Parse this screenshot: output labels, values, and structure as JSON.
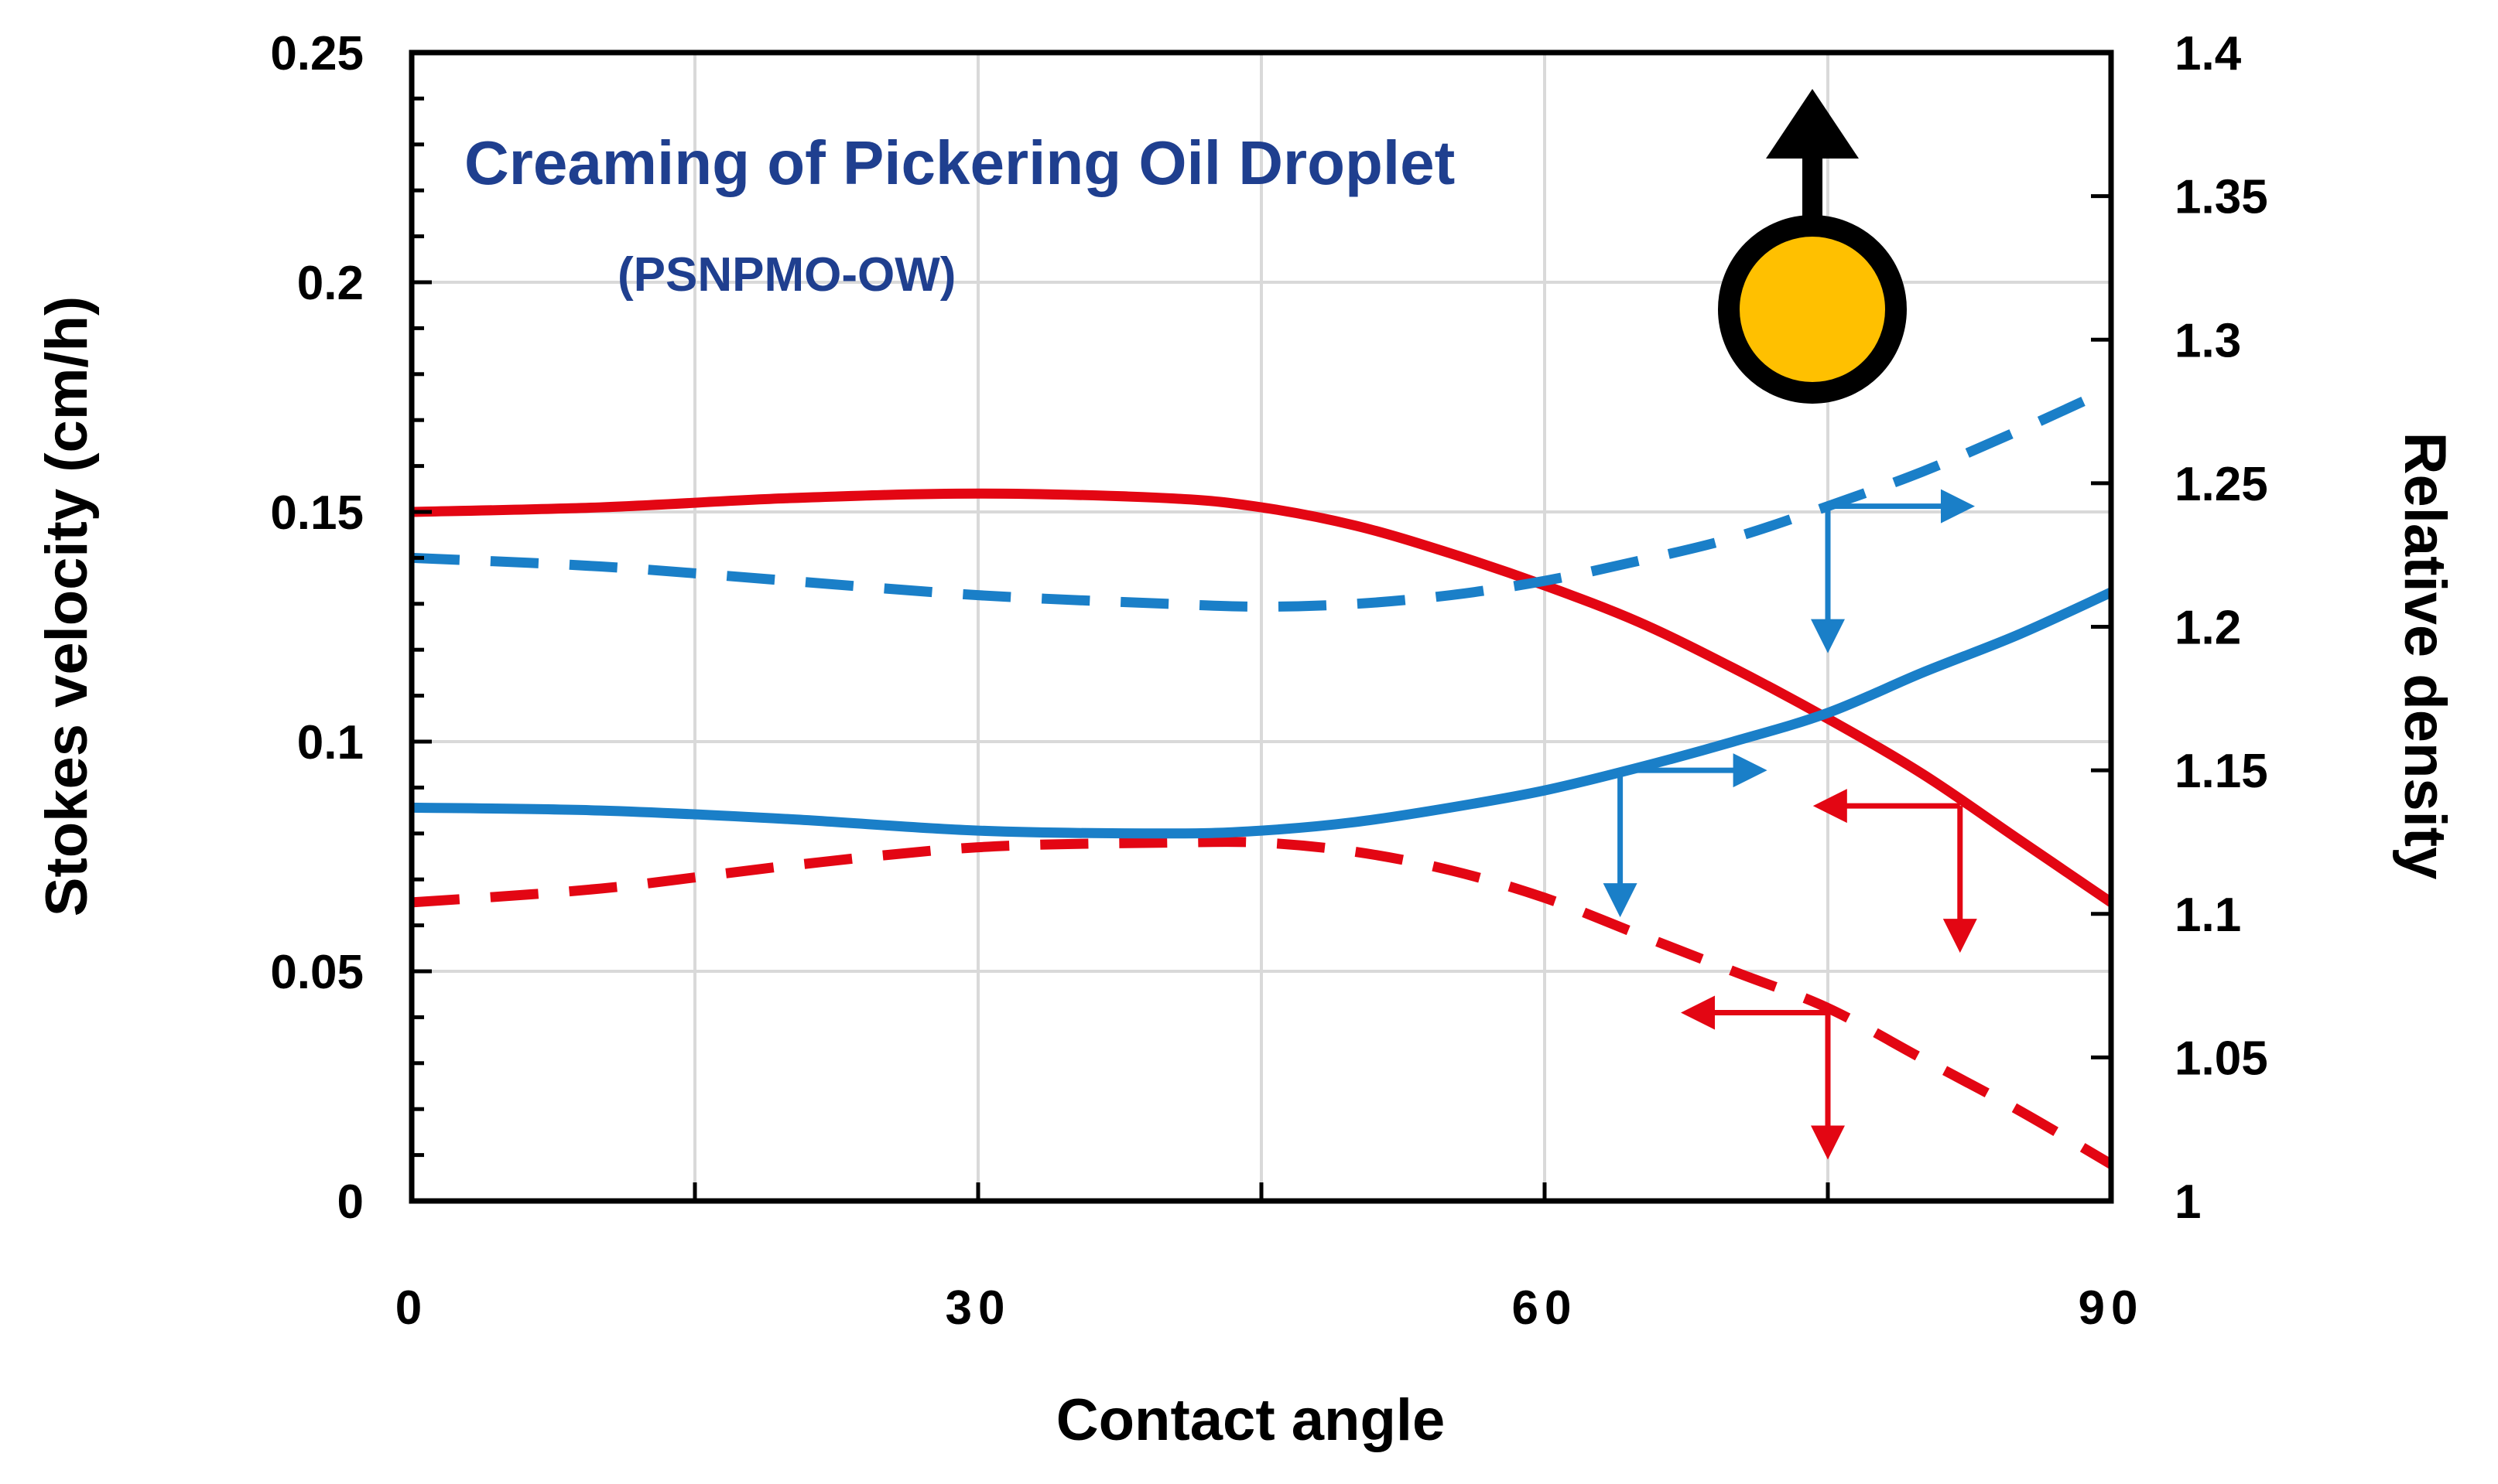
{
  "chart_data": {
    "type": "line",
    "title": "Creaming of Pickering Oil Droplet",
    "subtitle": "(PSNPMO-OW)",
    "xlabel": "Contact angle",
    "ylabel_left": "Stokes velocity (cm/h)",
    "ylabel_right": "Relative density",
    "xlim": [
      0,
      90
    ],
    "ylim_left": [
      0,
      0.25
    ],
    "ylim_right": [
      1,
      1.4
    ],
    "xticks": [
      0,
      30,
      60,
      90
    ],
    "xtick_labels": [
      "0",
      "30",
      "60",
      "90"
    ],
    "yticks_left": [
      0,
      0.05,
      0.1,
      0.15,
      0.2,
      0.25
    ],
    "ytick_labels_left": [
      "0",
      "0.05",
      "0.1",
      "0.15",
      "0.2",
      "0.25"
    ],
    "yticks_right": [
      1,
      1.05,
      1.1,
      1.15,
      1.2,
      1.25,
      1.3,
      1.35,
      1.4
    ],
    "ytick_labels_right": [
      "1",
      "1.05",
      "1.1",
      "1.15",
      "1.2",
      "1.25",
      "1.3",
      "1.35",
      "1.4"
    ],
    "grid": true,
    "series": [
      {
        "name": "Stokes velocity (solid)",
        "axis": "left",
        "color": "#e30613",
        "style": "solid",
        "x": [
          0,
          10,
          20,
          30,
          40,
          45,
          50,
          55,
          60,
          65,
          70,
          75,
          80,
          85,
          90
        ],
        "y": [
          0.15,
          0.151,
          0.153,
          0.154,
          0.153,
          0.151,
          0.147,
          0.141,
          0.134,
          0.126,
          0.116,
          0.105,
          0.093,
          0.079,
          0.065
        ]
      },
      {
        "name": "Stokes velocity (dashed)",
        "axis": "left",
        "color": "#e30613",
        "style": "dashed",
        "x": [
          0,
          10,
          20,
          30,
          40,
          45,
          50,
          55,
          60,
          65,
          70,
          75,
          80,
          85,
          90
        ],
        "y": [
          0.065,
          0.068,
          0.073,
          0.077,
          0.078,
          0.078,
          0.076,
          0.072,
          0.066,
          0.058,
          0.05,
          0.042,
          0.031,
          0.02,
          0.008
        ]
      },
      {
        "name": "Relative density (solid)",
        "axis": "right",
        "color": "#1a7fc8",
        "style": "solid",
        "x": [
          0,
          10,
          20,
          30,
          40,
          45,
          50,
          55,
          60,
          65,
          70,
          75,
          80,
          85,
          90
        ],
        "y": [
          1.137,
          1.136,
          1.133,
          1.129,
          1.128,
          1.129,
          1.132,
          1.137,
          1.143,
          1.151,
          1.16,
          1.17,
          1.184,
          1.197,
          1.212
        ]
      },
      {
        "name": "Relative density (dashed)",
        "axis": "right",
        "color": "#1a7fc8",
        "style": "dashed",
        "x": [
          0,
          10,
          20,
          30,
          40,
          45,
          50,
          55,
          60,
          65,
          70,
          75,
          80,
          85,
          90
        ],
        "y": [
          1.224,
          1.221,
          1.216,
          1.211,
          1.208,
          1.207,
          1.208,
          1.211,
          1.216,
          1.223,
          1.231,
          1.242,
          1.254,
          1.268,
          1.283
        ]
      }
    ],
    "annotations": [
      {
        "name": "arrow-blue-dashed",
        "color": "#1a7fc8",
        "direction": "right",
        "x": 75,
        "axis": "right",
        "y": 1.242
      },
      {
        "name": "arrow-blue-solid",
        "color": "#1a7fc8",
        "direction": "right",
        "x": 64,
        "axis": "right",
        "y": 1.15
      },
      {
        "name": "arrow-red-solid",
        "color": "#e30613",
        "direction": "left",
        "x": 82,
        "axis": "left",
        "y": 0.086
      },
      {
        "name": "arrow-red-dashed",
        "color": "#e30613",
        "direction": "left",
        "x": 75,
        "axis": "left",
        "y": 0.041
      }
    ],
    "droplet_icon": {
      "fill": "#ffc000",
      "stroke": "#000000",
      "arrow": "up"
    },
    "colors": {
      "red": "#e30613",
      "blue": "#1a7fc8",
      "title": "#1f3f8f",
      "grid": "#d9d9d9"
    }
  }
}
